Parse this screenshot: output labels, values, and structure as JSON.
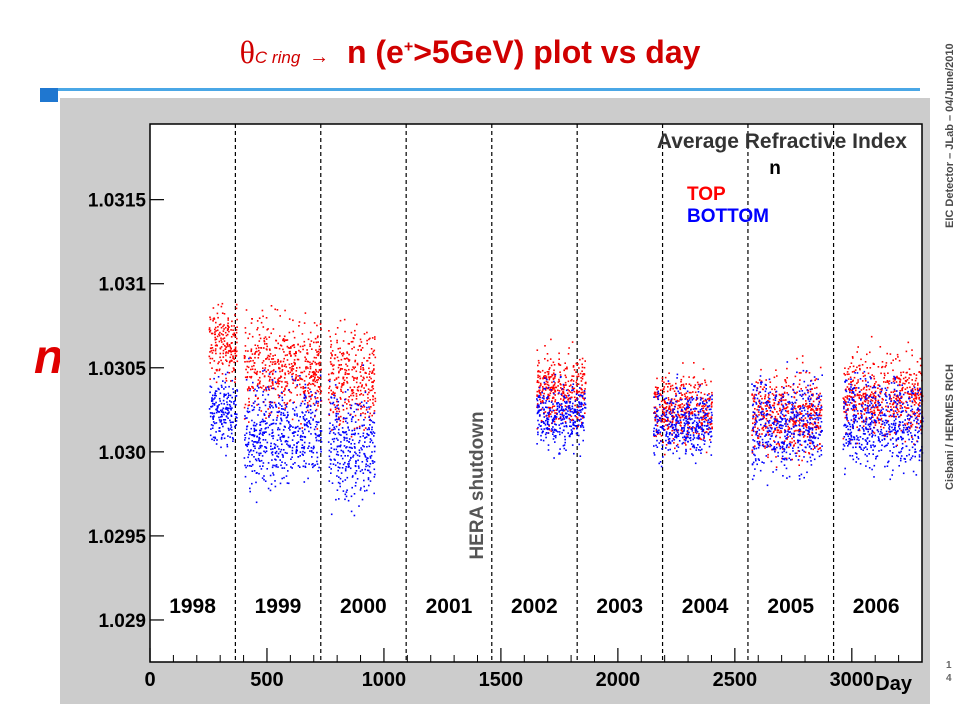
{
  "slide": {
    "title_theta": "θ",
    "title_sub": "C ring",
    "title_arrow": "→",
    "title_main_pre": "n (e",
    "title_main_sup": "+",
    "title_main_post": ">5GeV) plot vs day",
    "y_symbol": "n",
    "side_top": "EIC Detector – JLab – 04/June/2010",
    "side_bottom": "Cisbani / HERMES RICH",
    "page_digits": [
      "1",
      "4"
    ]
  },
  "chart_data": {
    "type": "scatter",
    "title": "Average Refractive Index",
    "legend_title": "n",
    "xlabel": "Day",
    "ylabel": "",
    "xlim": [
      0,
      3300
    ],
    "ylim": [
      1.02875,
      1.03195
    ],
    "x_ticks": [
      0,
      500,
      1000,
      1500,
      2000,
      2500,
      3000
    ],
    "y_ticks": [
      1.029,
      1.0295,
      1.03,
      1.0305,
      1.031,
      1.0315
    ],
    "y_tick_labels": [
      "1.029",
      "1.0295",
      "1.030",
      "1.0305",
      "1.031",
      "1.0315"
    ],
    "year_dividers": [
      365,
      730,
      1095,
      1461,
      1826,
      2191,
      2556,
      2922
    ],
    "year_labels": [
      {
        "label": "1998",
        "x": 182
      },
      {
        "label": "1999",
        "x": 547
      },
      {
        "label": "2000",
        "x": 912
      },
      {
        "label": "2001",
        "x": 1278
      },
      {
        "label": "2002",
        "x": 1643
      },
      {
        "label": "2003",
        "x": 2008
      },
      {
        "label": "2004",
        "x": 2373
      },
      {
        "label": "2005",
        "x": 2739
      },
      {
        "label": "2006",
        "x": 3104
      }
    ],
    "annotation": {
      "text": "HERA shutdown",
      "x": 1278,
      "y": 1.0298
    },
    "grid": false,
    "legend_position": "top-right",
    "series": [
      {
        "name": "TOP",
        "color": "#ff0000",
        "clusters": [
          {
            "x_range": [
              250,
              370
            ],
            "y_center": 1.03065,
            "spread": 0.0001
          },
          {
            "x_range": [
              400,
              730
            ],
            "y_center": 1.0305,
            "spread": 0.00014
          },
          {
            "x_range": [
              760,
              960
            ],
            "y_center": 1.03045,
            "spread": 0.00015
          },
          {
            "x_range": [
              1650,
              1860
            ],
            "y_center": 1.03038,
            "spread": 0.0001
          },
          {
            "x_range": [
              2150,
              2400
            ],
            "y_center": 1.03025,
            "spread": 0.0001
          },
          {
            "x_range": [
              2570,
              2870
            ],
            "y_center": 1.03023,
            "spread": 0.00012
          },
          {
            "x_range": [
              2960,
              3300
            ],
            "y_center": 1.03033,
            "spread": 0.00012
          }
        ]
      },
      {
        "name": "BOTTOM",
        "color": "#0000ff",
        "clusters": [
          {
            "x_range": [
              250,
              370
            ],
            "y_center": 1.03025,
            "spread": 0.0001
          },
          {
            "x_range": [
              400,
              730
            ],
            "y_center": 1.03012,
            "spread": 0.00015
          },
          {
            "x_range": [
              760,
              960
            ],
            "y_center": 1.03003,
            "spread": 0.00016
          },
          {
            "x_range": [
              1650,
              1860
            ],
            "y_center": 1.03022,
            "spread": 0.0001
          },
          {
            "x_range": [
              2150,
              2400
            ],
            "y_center": 1.03018,
            "spread": 0.0001
          },
          {
            "x_range": [
              2570,
              2870
            ],
            "y_center": 1.03016,
            "spread": 0.00014
          },
          {
            "x_range": [
              2960,
              3300
            ],
            "y_center": 1.03018,
            "spread": 0.00013
          }
        ]
      }
    ]
  }
}
